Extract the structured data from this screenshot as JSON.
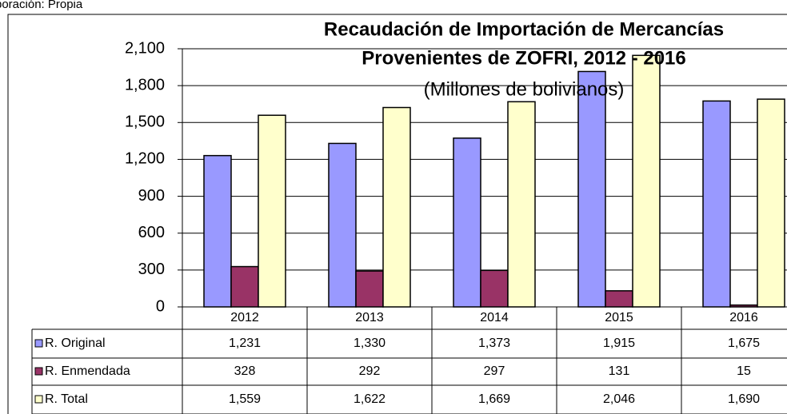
{
  "source": "boración: Propia",
  "chart_data": {
    "type": "bar",
    "title": "Recaudación de Importación de Mercancías",
    "title_line2": "Provenientes de ZOFRI, 2012 - 2016",
    "subtitle": "(Millones de bolivianos)",
    "categories": [
      "2012",
      "2013",
      "2014",
      "2015",
      "2016"
    ],
    "series": [
      {
        "name": "R. Original",
        "color": "#9999ff",
        "values": [
          1231,
          1330,
          1373,
          1915,
          1675
        ],
        "value_labels": [
          "1,231",
          "1,330",
          "1,373",
          "1,915",
          "1,675"
        ]
      },
      {
        "name": "R. Enmendada",
        "color": "#993366",
        "values": [
          328,
          292,
          297,
          131,
          15
        ]
      },
      {
        "name": "R. Total",
        "color": "#ffffcc",
        "values": [
          1559,
          1622,
          1669,
          2046,
          1690
        ],
        "value_labels": [
          "1,559",
          "1,622",
          "1,669",
          "2,046",
          "1,690"
        ]
      }
    ],
    "ylim": [
      0,
      2100
    ],
    "yticks": [
      0,
      300,
      600,
      900,
      {
        "value": 1200,
        "label": "1,200"
      },
      {
        "value": 1500,
        "label": "1,500"
      },
      {
        "value": 1800,
        "label": "1,800"
      },
      {
        "value": 2100,
        "label": "2,100"
      }
    ],
    "grid": true
  }
}
